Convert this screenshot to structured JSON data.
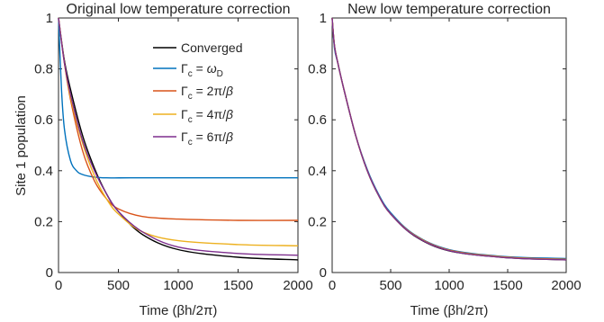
{
  "chart_data": [
    {
      "type": "line",
      "title": "Original low temperature correction",
      "xlabel": "Time (βh/2π)",
      "ylabel": "Site 1 population",
      "xlim": [
        0,
        2000
      ],
      "ylim": [
        0,
        1
      ],
      "xticks": [
        "0",
        "500",
        "1000",
        "1500",
        "2000"
      ],
      "yticks": [
        "0",
        "0.2",
        "0.4",
        "0.6",
        "0.8",
        "1"
      ],
      "legend": "top-right",
      "series": [
        {
          "name": "Converged",
          "color": "#000000",
          "x": [
            0,
            50,
            100,
            200,
            300,
            400,
            500,
            700,
            1000,
            1500,
            2000
          ],
          "y": [
            1.0,
            0.83,
            0.72,
            0.54,
            0.41,
            0.31,
            0.24,
            0.15,
            0.09,
            0.06,
            0.05
          ]
        },
        {
          "name": "Γc = ωD",
          "color": "#0072BD",
          "x": [
            0,
            25,
            50,
            100,
            150,
            200,
            300,
            400,
            600,
            1000,
            1500,
            2000
          ],
          "y": [
            1.0,
            0.72,
            0.56,
            0.44,
            0.4,
            0.385,
            0.375,
            0.372,
            0.372,
            0.372,
            0.372,
            0.372
          ]
        },
        {
          "name": "Γc = 2π/β",
          "color": "#D95319",
          "x": [
            0,
            50,
            100,
            200,
            300,
            400,
            500,
            700,
            1000,
            1500,
            2000
          ],
          "y": [
            1.0,
            0.82,
            0.68,
            0.48,
            0.36,
            0.29,
            0.25,
            0.22,
            0.21,
            0.205,
            0.205
          ]
        },
        {
          "name": "Γc = 4π/β",
          "color": "#EDB120",
          "x": [
            0,
            50,
            100,
            200,
            300,
            400,
            500,
            700,
            1000,
            1500,
            2000
          ],
          "y": [
            1.0,
            0.82,
            0.69,
            0.51,
            0.38,
            0.29,
            0.23,
            0.16,
            0.125,
            0.11,
            0.105
          ]
        },
        {
          "name": "Γc = 6π/β",
          "color": "#7E2F8E",
          "x": [
            0,
            50,
            100,
            200,
            300,
            400,
            500,
            700,
            1000,
            1500,
            2000
          ],
          "y": [
            1.0,
            0.82,
            0.7,
            0.52,
            0.4,
            0.31,
            0.24,
            0.16,
            0.1,
            0.075,
            0.068
          ]
        }
      ]
    },
    {
      "type": "line",
      "title": "New low temperature correction",
      "xlabel": "Time (βh/2π)",
      "ylabel": "",
      "xlim": [
        0,
        2000
      ],
      "ylim": [
        0,
        1
      ],
      "xticks": [
        "0",
        "500",
        "1000",
        "1500",
        "2000"
      ],
      "yticks": [
        "0",
        "0.2",
        "0.4",
        "0.6",
        "0.8",
        "1"
      ],
      "series": [
        {
          "color": "#000000",
          "x": [
            0,
            20,
            50,
            100,
            200,
            300,
            400,
            500,
            700,
            1000,
            1500,
            2000
          ],
          "y": [
            1.0,
            0.89,
            0.82,
            0.72,
            0.54,
            0.4,
            0.3,
            0.23,
            0.145,
            0.085,
            0.058,
            0.05
          ]
        },
        {
          "color": "#0072BD",
          "x": [
            0,
            20,
            50,
            100,
            200,
            300,
            400,
            500,
            700,
            1000,
            1500,
            2000
          ],
          "y": [
            1.0,
            0.88,
            0.82,
            0.72,
            0.54,
            0.405,
            0.305,
            0.235,
            0.15,
            0.09,
            0.062,
            0.055
          ]
        },
        {
          "color": "#D95319",
          "x": [
            0,
            20,
            50,
            100,
            200,
            300,
            400,
            500,
            700,
            1000,
            1500,
            2000
          ],
          "y": [
            1.0,
            0.89,
            0.82,
            0.72,
            0.54,
            0.4,
            0.3,
            0.23,
            0.148,
            0.088,
            0.06,
            0.052
          ]
        },
        {
          "color": "#EDB120",
          "x": [
            0,
            20,
            50,
            100,
            200,
            300,
            400,
            500,
            700,
            1000,
            1500,
            2000
          ],
          "y": [
            1.0,
            0.89,
            0.82,
            0.72,
            0.54,
            0.4,
            0.3,
            0.23,
            0.147,
            0.087,
            0.059,
            0.051
          ]
        },
        {
          "color": "#7E2F8E",
          "x": [
            0,
            20,
            50,
            100,
            200,
            300,
            400,
            500,
            700,
            1000,
            1500,
            2000
          ],
          "y": [
            1.0,
            0.89,
            0.82,
            0.72,
            0.54,
            0.4,
            0.3,
            0.23,
            0.146,
            0.086,
            0.058,
            0.05
          ]
        }
      ]
    }
  ]
}
